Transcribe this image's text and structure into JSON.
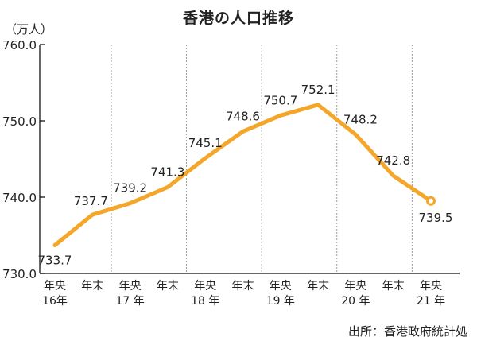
{
  "chart_data": {
    "type": "line",
    "title": "香港の人口推移",
    "ylabel": "（万人）",
    "source": "出所：香港政府統計処",
    "ylim": [
      730,
      760
    ],
    "yticks": [
      "730.0",
      "740.0",
      "750.0",
      "760.0"
    ],
    "categories": [
      {
        "line1": "年央",
        "line2": "16年"
      },
      {
        "line1": "年末",
        "line2": ""
      },
      {
        "line1": "年央",
        "line2": "17 年"
      },
      {
        "line1": "年末",
        "line2": ""
      },
      {
        "line1": "年央",
        "line2": "18 年"
      },
      {
        "line1": "年末",
        "line2": ""
      },
      {
        "line1": "年央",
        "line2": "19 年"
      },
      {
        "line1": "年末",
        "line2": ""
      },
      {
        "line1": "年央",
        "line2": "20 年"
      },
      {
        "line1": "年末",
        "line2": ""
      },
      {
        "line1": "年央",
        "line2": "21 年"
      }
    ],
    "series": [
      {
        "values": [
          733.7,
          737.7,
          739.2,
          741.3,
          745.1,
          748.6,
          750.7,
          752.1,
          748.2,
          742.8,
          739.5
        ],
        "labels": [
          "733.7",
          "737.7",
          "739.2",
          "741.3",
          "745.1",
          "748.6",
          "750.7",
          "752.1",
          "748.2",
          "742.8",
          "739.5"
        ]
      }
    ],
    "colors": {
      "line": "#f4a62a",
      "axis": "#333333",
      "separator": "#9a9a9a",
      "text": "#222222"
    },
    "grid": false,
    "last_point_marker": "open-circle"
  }
}
